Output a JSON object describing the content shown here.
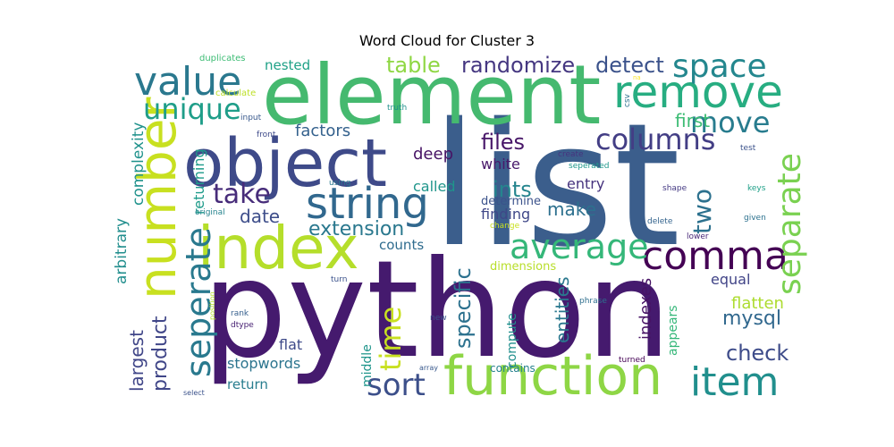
{
  "chart_data": {
    "type": "wordcloud",
    "title": "Word Cloud for Cluster 3",
    "colormap": "viridis",
    "words": [
      {
        "text": "list",
        "weight": 1.0,
        "color": "#3b5e8c"
      },
      {
        "text": "python",
        "weight": 0.96,
        "color": "#451a6e"
      },
      {
        "text": "element",
        "weight": 0.74,
        "color": "#45b96f"
      },
      {
        "text": "object",
        "weight": 0.58,
        "color": "#3e4a89"
      },
      {
        "text": "index",
        "weight": 0.56,
        "color": "#b5de2b"
      },
      {
        "text": "function",
        "weight": 0.52,
        "color": "#8ed645"
      },
      {
        "text": "number",
        "weight": 0.5,
        "color": "#c8e020"
      },
      {
        "text": "remove",
        "weight": 0.4,
        "color": "#27ad81"
      },
      {
        "text": "string",
        "weight": 0.38,
        "color": "#31688e"
      },
      {
        "text": "item",
        "weight": 0.36,
        "color": "#218f8d"
      },
      {
        "text": "value",
        "weight": 0.34,
        "color": "#2a788e"
      },
      {
        "text": "comma",
        "weight": 0.34,
        "color": "#440154"
      },
      {
        "text": "average",
        "weight": 0.3,
        "color": "#35b779"
      },
      {
        "text": "seperate",
        "weight": 0.3,
        "color": "#29798e"
      },
      {
        "text": "separate",
        "weight": 0.29,
        "color": "#7ad151"
      },
      {
        "text": "space",
        "weight": 0.28,
        "color": "#24878e"
      },
      {
        "text": "sort",
        "weight": 0.27,
        "color": "#3c4f8a"
      },
      {
        "text": "unique",
        "weight": 0.27,
        "color": "#1f9e89"
      },
      {
        "text": "columns",
        "weight": 0.26,
        "color": "#433e85"
      },
      {
        "text": "time",
        "weight": 0.26,
        "color": "#c8e020"
      },
      {
        "text": "move",
        "weight": 0.25,
        "color": "#287c8e"
      },
      {
        "text": "take",
        "weight": 0.24,
        "color": "#472c7a"
      },
      {
        "text": "two",
        "weight": 0.23,
        "color": "#2c718e"
      },
      {
        "text": "randomize",
        "weight": 0.21,
        "color": "#453781"
      },
      {
        "text": "table",
        "weight": 0.21,
        "color": "#8fd744"
      },
      {
        "text": "detect",
        "weight": 0.21,
        "color": "#3b528b"
      },
      {
        "text": "files",
        "weight": 0.2,
        "color": "#481769"
      },
      {
        "text": "ints",
        "weight": 0.2,
        "color": "#25858e"
      },
      {
        "text": "specific",
        "weight": 0.19,
        "color": "#2c718e"
      },
      {
        "text": "check",
        "weight": 0.19,
        "color": "#3e4c8a"
      },
      {
        "text": "extension",
        "weight": 0.18,
        "color": "#2a788e"
      },
      {
        "text": "product",
        "weight": 0.18,
        "color": "#404688"
      },
      {
        "text": "mysql",
        "weight": 0.17,
        "color": "#31688e"
      },
      {
        "text": "first",
        "weight": 0.16,
        "color": "#3dbc74"
      },
      {
        "text": "make",
        "weight": 0.16,
        "color": "#2d708e"
      },
      {
        "text": "date",
        "weight": 0.15,
        "color": "#3d4d8a"
      },
      {
        "text": "largest",
        "weight": 0.15,
        "color": "#404688"
      },
      {
        "text": "entities",
        "weight": 0.15,
        "color": "#2a788e"
      },
      {
        "text": "indexes",
        "weight": 0.14,
        "color": "#471365"
      },
      {
        "text": "flatten",
        "weight": 0.14,
        "color": "#addc30"
      },
      {
        "text": "factors",
        "weight": 0.14,
        "color": "#34618d"
      },
      {
        "text": "deep",
        "weight": 0.14,
        "color": "#471365"
      },
      {
        "text": "complexity",
        "weight": 0.13,
        "color": "#20928c"
      },
      {
        "text": "white",
        "weight": 0.13,
        "color": "#48186a"
      },
      {
        "text": "arbitrary",
        "weight": 0.13,
        "color": "#218e8d"
      },
      {
        "text": "returning",
        "weight": 0.13,
        "color": "#1e9b8a"
      },
      {
        "text": "called",
        "weight": 0.13,
        "color": "#1f958b"
      },
      {
        "text": "entry",
        "weight": 0.13,
        "color": "#46337e"
      },
      {
        "text": "finding",
        "weight": 0.13,
        "color": "#3f4788"
      },
      {
        "text": "equal",
        "weight": 0.13,
        "color": "#414487"
      },
      {
        "text": "stopwords",
        "weight": 0.13,
        "color": "#2b748e"
      },
      {
        "text": "flat",
        "weight": 0.13,
        "color": "#3e4a89"
      },
      {
        "text": "return",
        "weight": 0.12,
        "color": "#287d8e"
      },
      {
        "text": "counts",
        "weight": 0.12,
        "color": "#2f6c8e"
      },
      {
        "text": "nested",
        "weight": 0.12,
        "color": "#1fa187"
      },
      {
        "text": "compute",
        "weight": 0.11,
        "color": "#218f8d"
      },
      {
        "text": "middle",
        "weight": 0.11,
        "color": "#1f958b"
      },
      {
        "text": "appears",
        "weight": 0.11,
        "color": "#35b779"
      },
      {
        "text": "determine",
        "weight": 0.1,
        "color": "#3b528b"
      },
      {
        "text": "dimensions",
        "weight": 0.1,
        "color": "#b8de29"
      },
      {
        "text": "contains",
        "weight": 0.1,
        "color": "#26828e"
      },
      {
        "text": "duplicates",
        "weight": 0.08,
        "color": "#3dbc74"
      },
      {
        "text": "calculate",
        "weight": 0.08,
        "color": "#bddf26"
      },
      {
        "text": "input",
        "weight": 0.08,
        "color": "#38588c"
      },
      {
        "text": "front",
        "weight": 0.08,
        "color": "#3e4a89"
      },
      {
        "text": "truth",
        "weight": 0.08,
        "color": "#21918c"
      },
      {
        "text": "create",
        "weight": 0.08,
        "color": "#46337e"
      },
      {
        "text": "seperated",
        "weight": 0.08,
        "color": "#1f988b"
      },
      {
        "text": "using",
        "weight": 0.08,
        "color": "#2a788e"
      },
      {
        "text": "original",
        "weight": 0.08,
        "color": "#25838e"
      },
      {
        "text": "test",
        "weight": 0.08,
        "color": "#3b528b"
      },
      {
        "text": "csv",
        "weight": 0.07,
        "color": "#2c728e"
      },
      {
        "text": "shape",
        "weight": 0.08,
        "color": "#443983"
      },
      {
        "text": "keys",
        "weight": 0.08,
        "color": "#1fa088"
      },
      {
        "text": "delete",
        "weight": 0.08,
        "color": "#33638d"
      },
      {
        "text": "given",
        "weight": 0.08,
        "color": "#2c718e"
      },
      {
        "text": "lower",
        "weight": 0.08,
        "color": "#482878"
      },
      {
        "text": "phrase",
        "weight": 0.08,
        "color": "#2e6f8e"
      },
      {
        "text": "turn",
        "weight": 0.08,
        "color": "#3b528b"
      },
      {
        "text": "rank",
        "weight": 0.08,
        "color": "#355f8d"
      },
      {
        "text": "dtype",
        "weight": 0.08,
        "color": "#482173"
      },
      {
        "text": "new",
        "weight": 0.08,
        "color": "#3b528b"
      },
      {
        "text": "position",
        "weight": 0.07,
        "color": "#b5de2b"
      },
      {
        "text": "array",
        "weight": 0.07,
        "color": "#38588c"
      },
      {
        "text": "turned",
        "weight": 0.08,
        "color": "#440154"
      },
      {
        "text": "change",
        "weight": 0.07,
        "color": "#c8e020"
      },
      {
        "text": "select",
        "weight": 0.07,
        "color": "#3b528b"
      },
      {
        "text": "na",
        "weight": 0.06,
        "color": "#fde725"
      }
    ]
  }
}
